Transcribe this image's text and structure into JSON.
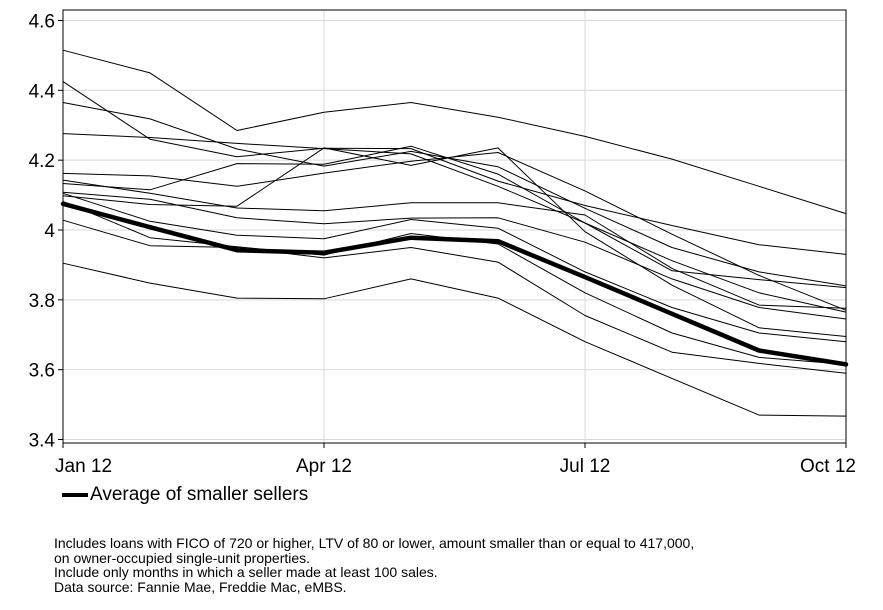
{
  "chart_data": {
    "type": "line",
    "x": [
      "2012-01",
      "2012-02",
      "2012-03",
      "2012-04",
      "2012-05",
      "2012-06",
      "2012-07",
      "2012-08",
      "2012-09",
      "2012-10"
    ],
    "x_tick_labels": [
      "Jan 12",
      "Apr 12",
      "Jul 12",
      "Oct 12"
    ],
    "y_tick_labels": [
      "3.4",
      "3.6",
      "3.8",
      "4",
      "4.2",
      "4.4",
      "4.6"
    ],
    "ylim": [
      3.39,
      4.63
    ],
    "grid": true,
    "legend_position": "bottom-left",
    "series": [
      {
        "values": [
          4.515,
          4.45,
          4.285,
          4.337,
          4.365,
          4.323,
          4.268,
          4.203,
          4.125,
          4.047
        ],
        "highlight": false
      },
      {
        "values": [
          4.425,
          4.26,
          4.21,
          4.234,
          4.233,
          4.14,
          4.07,
          4.013,
          3.958,
          3.93
        ],
        "highlight": false
      },
      {
        "values": [
          4.365,
          4.318,
          4.232,
          4.183,
          4.225,
          4.181,
          4.062,
          3.95,
          3.88,
          3.84
        ],
        "highlight": false
      },
      {
        "values": [
          4.276,
          4.265,
          4.248,
          4.233,
          4.218,
          4.125,
          4.02,
          3.883,
          3.858,
          3.835
        ],
        "highlight": false
      },
      {
        "values": [
          4.162,
          4.155,
          4.125,
          4.163,
          4.197,
          4.222,
          4.112,
          3.988,
          3.87,
          3.77
        ],
        "highlight": false
      },
      {
        "values": [
          4.143,
          4.105,
          4.063,
          4.055,
          4.078,
          4.078,
          4.043,
          3.89,
          3.785,
          3.776
        ],
        "highlight": false
      },
      {
        "values": [
          4.133,
          4.115,
          4.19,
          4.188,
          4.24,
          4.16,
          4.02,
          3.912,
          3.82,
          3.765
        ],
        "highlight": false
      },
      {
        "values": [
          4.108,
          4.088,
          4.035,
          4.018,
          4.034,
          4.035,
          3.965,
          3.86,
          3.778,
          3.745
        ],
        "highlight": false
      },
      {
        "values": [
          4.098,
          4.073,
          4.068,
          4.235,
          4.185,
          4.235,
          3.995,
          3.842,
          3.72,
          3.695
        ],
        "highlight": false
      },
      {
        "values": [
          4.105,
          4.025,
          3.985,
          3.975,
          4.03,
          4.005,
          3.88,
          3.778,
          3.705,
          3.68
        ],
        "highlight": false
      },
      {
        "values": [
          4.082,
          3.978,
          3.952,
          3.928,
          3.99,
          3.96,
          3.82,
          3.705,
          3.635,
          3.615
        ],
        "highlight": false
      },
      {
        "values": [
          4.028,
          3.955,
          3.95,
          3.92,
          3.95,
          3.908,
          3.755,
          3.65,
          3.618,
          3.59
        ],
        "highlight": false
      },
      {
        "values": [
          3.905,
          3.848,
          3.805,
          3.803,
          3.86,
          3.805,
          3.68,
          3.575,
          3.47,
          3.467
        ],
        "highlight": false
      },
      {
        "name": "Average of smaller sellers",
        "values": [
          4.075,
          4.008,
          3.942,
          3.935,
          3.978,
          3.968,
          3.865,
          3.76,
          3.655,
          3.615
        ],
        "highlight": true
      }
    ]
  },
  "legend": {
    "label": "Average of smaller sellers"
  },
  "notes": [
    "Includes loans with FICO of 720 or higher, LTV of 80 or lower, amount smaller than or equal to 417,000,",
    "on owner-occupied single-unit properties.",
    "Include only months in which a seller made at least 100 sales.",
    "Data source: Fannie Mae, Freddie Mac, eMBS."
  ]
}
